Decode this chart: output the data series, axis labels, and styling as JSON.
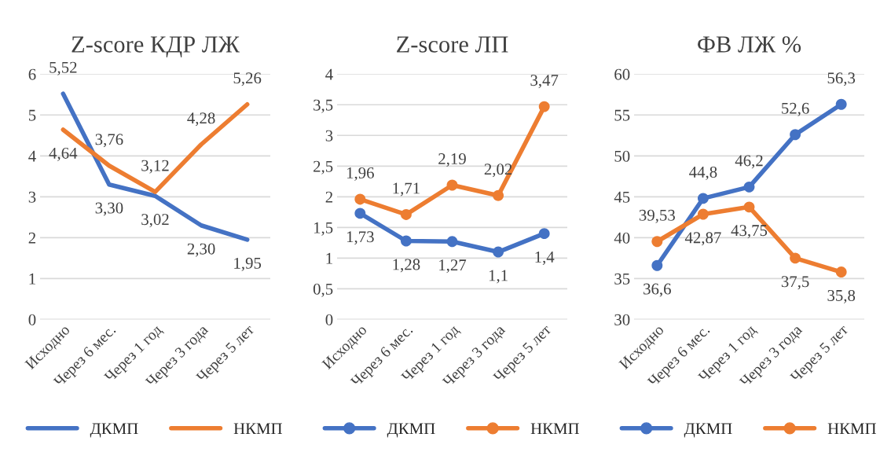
{
  "chart_data": [
    {
      "type": "line",
      "title": "Z-score КДР ЛЖ",
      "categories": [
        "Исходно",
        "Через 6 мес.",
        "Через 1 год",
        "Через 3 года",
        "Через 5 лет"
      ],
      "ylim": [
        0,
        6
      ],
      "yticks": [
        0,
        1,
        2,
        3,
        4,
        5,
        6
      ],
      "grid": "y",
      "legend": "bottom",
      "marker": "none",
      "series": [
        {
          "name": "ДКМП",
          "color": "#4472c4",
          "values": [
            5.52,
            3.3,
            3.02,
            2.3,
            1.95
          ],
          "value_labels": [
            "5,52",
            "3,30",
            "3,02",
            "2,30",
            "1,95"
          ]
        },
        {
          "name": "НКМП",
          "color": "#ed7d31",
          "values": [
            4.64,
            3.76,
            3.12,
            4.28,
            5.26
          ],
          "value_labels": [
            "4,64",
            "3,76",
            "3,12",
            "4,28",
            "5,26"
          ]
        }
      ]
    },
    {
      "type": "line",
      "title": "Z-score ЛП",
      "categories": [
        "Исходно",
        "Через 6 мес.",
        "Через 1 год",
        "Через 3 года",
        "Через 5 лет"
      ],
      "ylim": [
        0,
        4
      ],
      "yticks": [
        0,
        {
          "value": 0.5,
          "label": "0,5"
        },
        1,
        {
          "value": 1.5,
          "label": "1,5"
        },
        2,
        {
          "value": 2.5,
          "label": "2,5"
        },
        3,
        {
          "value": 3.5,
          "label": "3,5"
        },
        4
      ],
      "grid": "y",
      "legend": "bottom",
      "marker": "circle",
      "series": [
        {
          "name": "ДКМП",
          "color": "#4472c4",
          "values": [
            1.73,
            1.28,
            1.27,
            1.1,
            1.4
          ],
          "value_labels": [
            "1,73",
            "1,28",
            "1,27",
            "1,1",
            "1,4"
          ]
        },
        {
          "name": "НКМП",
          "color": "#ed7d31",
          "values": [
            1.96,
            1.71,
            2.19,
            2.02,
            3.47
          ],
          "value_labels": [
            "1,96",
            "1,71",
            "2,19",
            "2,02",
            "3,47"
          ]
        }
      ]
    },
    {
      "type": "line",
      "title": "ФВ ЛЖ %",
      "categories": [
        "Исходно",
        "Через 6 мес.",
        "Через 1 год",
        "Через 3 года",
        "Через 5 лет"
      ],
      "ylim": [
        30,
        60
      ],
      "yticks": [
        30,
        35,
        40,
        45,
        50,
        55,
        60
      ],
      "grid": "y",
      "legend": "bottom",
      "marker": "circle",
      "series": [
        {
          "name": "ДКМП",
          "color": "#4472c4",
          "values": [
            36.6,
            44.8,
            46.2,
            52.6,
            56.3
          ],
          "value_labels": [
            "36,6",
            "44,8",
            "46,2",
            "52,6",
            "56,3"
          ]
        },
        {
          "name": "НКМП",
          "color": "#ed7d31",
          "values": [
            39.53,
            42.87,
            43.75,
            37.5,
            35.8
          ],
          "value_labels": [
            "39,53",
            "42,87",
            "43,75",
            "37,5",
            "35,8"
          ]
        }
      ]
    }
  ]
}
